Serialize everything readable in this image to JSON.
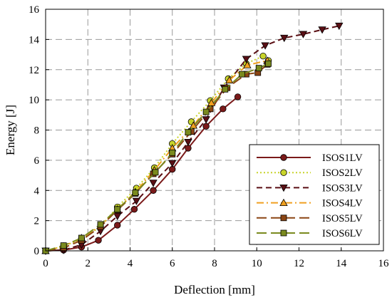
{
  "chart_data": {
    "type": "line",
    "xlabel": "Deflection [mm]",
    "ylabel": "Energy [J]",
    "xlim": [
      0,
      16
    ],
    "ylim": [
      0,
      16
    ],
    "x_ticks": [
      0,
      2,
      4,
      6,
      8,
      10,
      12,
      14,
      16
    ],
    "y_ticks": [
      0,
      2,
      4,
      6,
      8,
      10,
      12,
      14,
      16
    ],
    "grid": "dashed",
    "legend_position": "bottom-right",
    "series": [
      {
        "name": "ISOS1LV",
        "color": "#7b1a1a",
        "dash": "solid",
        "marker": "circle",
        "points": [
          [
            0,
            0
          ],
          [
            0.85,
            0.05
          ],
          [
            1.7,
            0.25
          ],
          [
            2.5,
            0.7
          ],
          [
            3.4,
            1.7
          ],
          [
            4.2,
            2.75
          ],
          [
            5.1,
            4.0
          ],
          [
            6.0,
            5.4
          ],
          [
            6.75,
            6.8
          ],
          [
            7.6,
            8.25
          ],
          [
            8.4,
            9.4
          ],
          [
            9.1,
            10.2
          ]
        ]
      },
      {
        "name": "ISOS2LV",
        "color": "#c8d42a",
        "dash": "dotted",
        "marker": "circle",
        "points": [
          [
            0,
            0
          ],
          [
            0.85,
            0.3
          ],
          [
            1.7,
            0.8
          ],
          [
            2.6,
            1.6
          ],
          [
            3.4,
            2.9
          ],
          [
            4.3,
            4.15
          ],
          [
            5.15,
            5.5
          ],
          [
            6.0,
            7.1
          ],
          [
            6.9,
            8.55
          ],
          [
            7.8,
            9.95
          ],
          [
            8.65,
            11.4
          ],
          [
            9.5,
            12.4
          ],
          [
            10.3,
            12.9
          ],
          [
            10.55,
            12.6
          ]
        ]
      },
      {
        "name": "ISOS3LV",
        "color": "#5a0f14",
        "dash": "dashed",
        "marker": "triangle-down",
        "points": [
          [
            0,
            0
          ],
          [
            0.85,
            0.05
          ],
          [
            1.7,
            0.4
          ],
          [
            2.6,
            1.3
          ],
          [
            3.4,
            2.3
          ],
          [
            4.3,
            3.3
          ],
          [
            5.1,
            4.5
          ],
          [
            6.0,
            5.8
          ],
          [
            6.75,
            7.2
          ],
          [
            7.6,
            8.7
          ],
          [
            8.45,
            10.8
          ],
          [
            9.5,
            12.7
          ],
          [
            10.4,
            13.6
          ],
          [
            11.3,
            14.1
          ],
          [
            12.2,
            14.35
          ],
          [
            13.1,
            14.65
          ],
          [
            13.9,
            14.9
          ]
        ]
      },
      {
        "name": "ISOS4LV",
        "color": "#f0a020",
        "dash": "dashdot",
        "marker": "triangle-up",
        "points": [
          [
            0,
            0
          ],
          [
            0.85,
            0.3
          ],
          [
            1.7,
            0.85
          ],
          [
            2.6,
            1.65
          ],
          [
            3.4,
            2.75
          ],
          [
            4.25,
            3.9
          ],
          [
            5.15,
            5.35
          ],
          [
            6.0,
            6.8
          ],
          [
            7.0,
            8.3
          ],
          [
            7.85,
            9.8
          ],
          [
            8.7,
            11.3
          ],
          [
            9.55,
            12.3
          ],
          [
            10.5,
            12.6
          ]
        ]
      },
      {
        "name": "ISOS5LV",
        "color": "#8b4513",
        "dash": "longdash",
        "marker": "square",
        "points": [
          [
            0,
            0
          ],
          [
            0.85,
            0.2
          ],
          [
            1.7,
            0.7
          ],
          [
            2.6,
            1.6
          ],
          [
            3.4,
            2.7
          ],
          [
            4.25,
            3.8
          ],
          [
            5.1,
            5.1
          ],
          [
            6.0,
            6.4
          ],
          [
            6.9,
            7.9
          ],
          [
            7.8,
            9.4
          ],
          [
            8.6,
            10.8
          ],
          [
            9.5,
            11.7
          ],
          [
            10.05,
            11.8
          ],
          [
            10.5,
            12.35
          ]
        ]
      },
      {
        "name": "ISOS6LV",
        "color": "#7a8a1e",
        "dash": "longdash",
        "marker": "square",
        "points": [
          [
            0,
            0
          ],
          [
            0.85,
            0.35
          ],
          [
            1.7,
            0.85
          ],
          [
            2.6,
            1.75
          ],
          [
            3.4,
            2.75
          ],
          [
            4.25,
            3.85
          ],
          [
            5.2,
            5.2
          ],
          [
            6.0,
            6.5
          ],
          [
            6.75,
            7.85
          ],
          [
            7.6,
            9.2
          ],
          [
            8.5,
            10.7
          ],
          [
            9.3,
            11.7
          ],
          [
            10.1,
            12.1
          ],
          [
            10.55,
            12.4
          ]
        ]
      }
    ]
  }
}
